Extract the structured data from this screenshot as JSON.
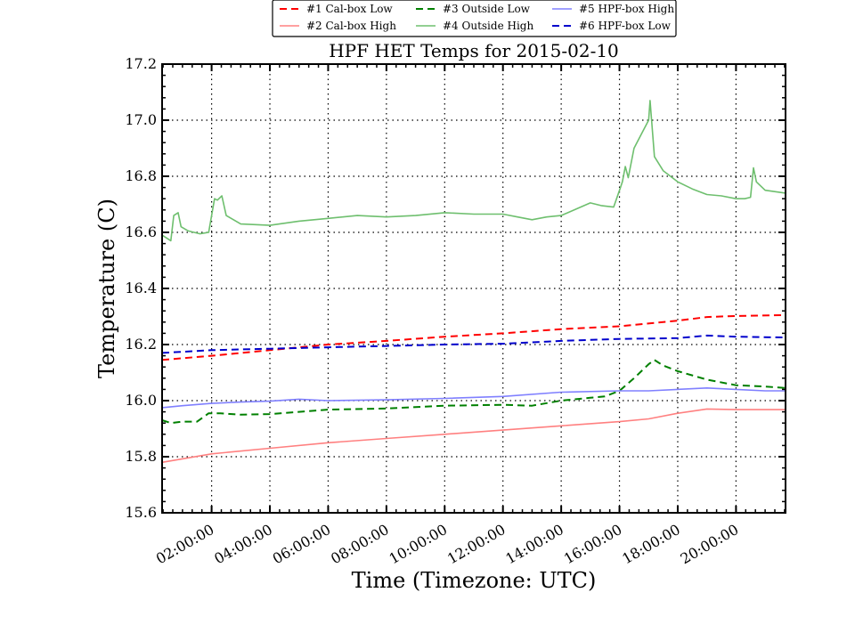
{
  "chart_data": {
    "type": "line",
    "title": "HPF HET Temps for 2015-02-10",
    "xlabel": "Time (Timezone: UTC)",
    "ylabel": "Temperature (C)",
    "xlim": [
      0.3,
      21.7
    ],
    "ylim": [
      15.6,
      17.2
    ],
    "x_ticks": [
      2,
      4,
      6,
      8,
      10,
      12,
      14,
      16,
      18,
      20
    ],
    "x_tick_labels": [
      "02:00:00",
      "04:00:00",
      "06:00:00",
      "08:00:00",
      "10:00:00",
      "12:00:00",
      "14:00:00",
      "16:00:00",
      "18:00:00",
      "20:00:00"
    ],
    "y_ticks": [
      15.6,
      15.8,
      16.0,
      16.2,
      16.4,
      16.6,
      16.8,
      17.0,
      17.2
    ],
    "y_tick_labels": [
      "15.6",
      "15.8",
      "16.0",
      "16.2",
      "16.4",
      "16.6",
      "16.8",
      "17.0",
      "17.2"
    ],
    "grid": true,
    "legend_position": "top-center",
    "series": [
      {
        "name": "#1 Cal-box Low",
        "color": "#ff0000",
        "dashed": true,
        "x": [
          0.3,
          2,
          4,
          6,
          8,
          10,
          12,
          14,
          16,
          18,
          19,
          20,
          21.7
        ],
        "y": [
          16.145,
          16.16,
          16.18,
          16.2,
          16.213,
          16.228,
          16.24,
          16.255,
          16.265,
          16.285,
          16.298,
          16.302,
          16.305
        ]
      },
      {
        "name": "#2 Cal-box High",
        "color": "#ff8080",
        "dashed": false,
        "x": [
          0.3,
          2,
          4,
          6,
          8,
          10,
          12,
          14,
          16,
          17,
          18,
          19,
          20,
          21.7
        ],
        "y": [
          15.78,
          15.81,
          15.83,
          15.85,
          15.865,
          15.88,
          15.895,
          15.91,
          15.925,
          15.935,
          15.955,
          15.97,
          15.968,
          15.968
        ]
      },
      {
        "name": "#3 Outside Low",
        "color": "#008000",
        "dashed": true,
        "x": [
          0.3,
          0.6,
          1,
          1.5,
          1.9,
          2.3,
          3,
          4,
          6,
          8,
          10,
          12,
          13,
          14,
          15,
          15.5,
          16,
          16.5,
          17,
          17.2,
          17.5,
          18,
          19,
          20,
          21,
          21.7
        ],
        "y": [
          15.93,
          15.92,
          15.925,
          15.925,
          15.955,
          15.955,
          15.95,
          15.952,
          15.968,
          15.972,
          15.982,
          15.985,
          15.982,
          16.0,
          16.01,
          16.015,
          16.035,
          16.08,
          16.13,
          16.145,
          16.125,
          16.105,
          16.075,
          16.055,
          16.05,
          16.045
        ]
      },
      {
        "name": "#4 Outside High",
        "color": "#6ebf6e",
        "dashed": false,
        "x": [
          0.3,
          0.6,
          0.7,
          0.85,
          0.95,
          1.2,
          1.6,
          1.9,
          2.1,
          2.2,
          2.35,
          2.5,
          3,
          4,
          5,
          6,
          7,
          8,
          9,
          10,
          11,
          12,
          12.5,
          13,
          13.5,
          14,
          15,
          15.4,
          15.8,
          16.0,
          16.1,
          16.2,
          16.3,
          16.5,
          16.8,
          17.0,
          17.05,
          17.2,
          17.5,
          18,
          18.5,
          19,
          19.5,
          20,
          20.3,
          20.5,
          20.6,
          20.7,
          21,
          21.7
        ],
        "y": [
          16.59,
          16.57,
          16.66,
          16.67,
          16.62,
          16.605,
          16.595,
          16.6,
          16.72,
          16.715,
          16.73,
          16.66,
          16.63,
          16.625,
          16.64,
          16.65,
          16.66,
          16.655,
          16.66,
          16.67,
          16.665,
          16.665,
          16.655,
          16.645,
          16.655,
          16.66,
          16.705,
          16.695,
          16.69,
          16.75,
          16.78,
          16.835,
          16.795,
          16.9,
          16.96,
          17.0,
          17.07,
          16.87,
          16.82,
          16.78,
          16.755,
          16.735,
          16.73,
          16.72,
          16.72,
          16.725,
          16.83,
          16.78,
          16.75,
          16.74
        ]
      },
      {
        "name": "#5 HPF-box High",
        "color": "#8080ff",
        "dashed": false,
        "x": [
          0.3,
          1,
          2,
          3,
          4,
          5,
          6,
          8,
          10,
          12,
          14,
          16,
          17,
          18,
          19,
          20,
          21,
          21.7
        ],
        "y": [
          15.975,
          15.982,
          15.99,
          15.995,
          15.998,
          16.005,
          16.0,
          16.003,
          16.008,
          16.015,
          16.03,
          16.035,
          16.035,
          16.04,
          16.045,
          16.04,
          16.035,
          16.035
        ]
      },
      {
        "name": "#6 HPF-box Low",
        "color": "#0000cc",
        "dashed": true,
        "x": [
          0.3,
          2,
          4,
          6,
          8,
          10,
          12,
          14,
          16,
          18,
          19,
          20,
          21.7
        ],
        "y": [
          16.17,
          16.18,
          16.185,
          16.19,
          16.195,
          16.2,
          16.203,
          16.213,
          16.22,
          16.223,
          16.232,
          16.228,
          16.225
        ]
      }
    ]
  }
}
